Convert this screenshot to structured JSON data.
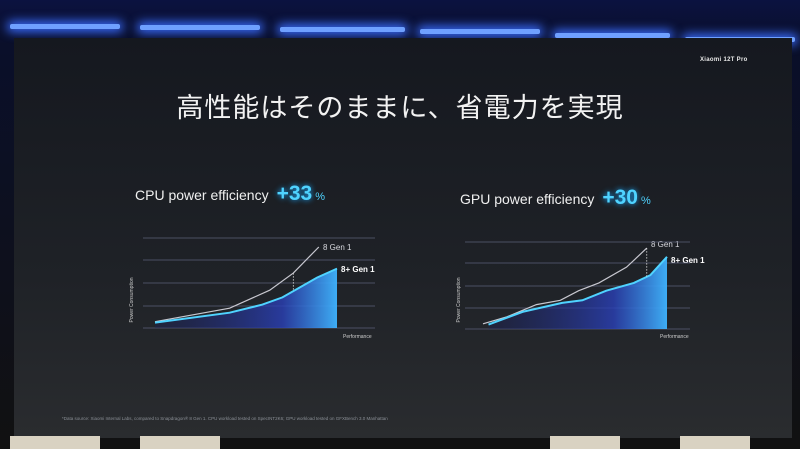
{
  "brand": "Xiaomi 12T Pro",
  "title": "高性能はそのままに、省電力を実現",
  "footnote": "*Data source: Xiaomi Internal Labs, compared to Snapdragon® 8 Gen 1. CPU workload tested on SpecINT2K6; GPU workload tested on GFXBench 3.0 Manhattan",
  "colors": {
    "accent": "#4fd3ff",
    "gray_series": "#c8c8d0",
    "fill": "#2a3fb0"
  },
  "cpu": {
    "label": "CPU power efficiency",
    "value": "+33",
    "unit": "%"
  },
  "gpu": {
    "label": "GPU power efficiency",
    "value": "+30",
    "unit": "%"
  },
  "chart_data": [
    {
      "type": "line",
      "xlabel": "Performance",
      "ylabel": "Power Consumption",
      "grid": true,
      "series": [
        {
          "name": "8 Gen 1",
          "x": [
            0,
            41,
            63,
            76,
            90
          ],
          "y": [
            7,
            22,
            42,
            61,
            90
          ]
        },
        {
          "name": "8+ Gen 1",
          "x": [
            0,
            41,
            59,
            70,
            89,
            100
          ],
          "y": [
            6,
            17,
            26,
            34,
            56,
            66
          ],
          "filled": true
        }
      ]
    },
    {
      "type": "line",
      "xlabel": "Performance",
      "ylabel": "Power Consumption",
      "grid": true,
      "series": [
        {
          "name": "8 Gen 1",
          "x": [
            0,
            13,
            29,
            42,
            52,
            63,
            78,
            89
          ],
          "y": [
            6,
            14,
            28,
            33,
            44,
            53,
            71,
            93
          ]
        },
        {
          "name": "8+ Gen 1",
          "x": [
            3,
            22,
            43,
            54,
            67,
            82,
            91,
            100
          ],
          "y": [
            5,
            20,
            30,
            33,
            44,
            53,
            62,
            83
          ],
          "filled": true
        }
      ]
    }
  ]
}
